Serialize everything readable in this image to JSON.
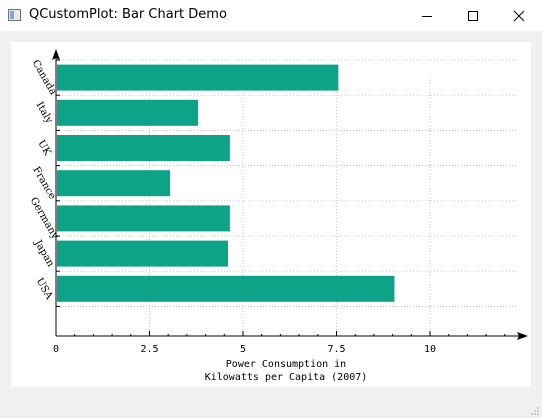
{
  "window": {
    "title": "QCustomPlot: Bar Chart Demo",
    "controls": [
      {
        "name": "minimize",
        "icon": "minimize-icon"
      },
      {
        "name": "maximize",
        "icon": "maximize-icon"
      },
      {
        "name": "close",
        "icon": "close-icon"
      }
    ]
  },
  "chart_data": {
    "type": "bar",
    "orientation": "horizontal",
    "categories": [
      "USA",
      "Japan",
      "Germany",
      "France",
      "UK",
      "Italy",
      "Canada"
    ],
    "values": [
      9.05,
      4.6,
      4.65,
      3.05,
      4.65,
      3.8,
      7.55
    ],
    "xlabel": "Power Consumption in\nKilowatts per Capita (2007)",
    "ylabel": "",
    "xlim": [
      0,
      12.3
    ],
    "xticks": [
      0,
      2.5,
      5,
      7.5,
      10
    ],
    "xtick_labels": [
      "0",
      "2.5",
      "5",
      "7.5",
      "10"
    ],
    "grid": true,
    "bar_color": "#0da387",
    "axis_color": "#000000",
    "grid_color": "#c8c8c8"
  }
}
